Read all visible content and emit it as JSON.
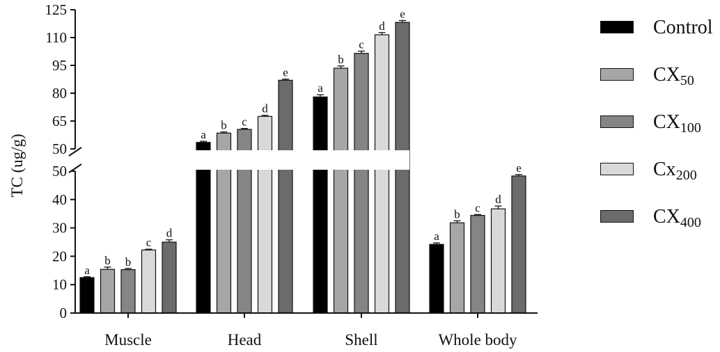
{
  "chart_data": {
    "type": "bar",
    "ylabel": "TC (ug/g)",
    "xlabel": "",
    "categories": [
      "Muscle",
      "Head",
      "Shell",
      "Whole body"
    ],
    "y_axis_break": {
      "lower_range": [
        0,
        50
      ],
      "upper_range": [
        50,
        125
      ],
      "lower_ticks": [
        "0",
        "10",
        "20",
        "30",
        "40",
        "50"
      ],
      "upper_ticks": [
        "50",
        "65",
        "80",
        "95",
        "110",
        "125"
      ]
    },
    "series": [
      {
        "name": "Control",
        "base": "Control",
        "sub": "",
        "color": "#000000",
        "values": [
          12.5,
          53.5,
          78,
          24.2
        ],
        "errors": [
          0.3,
          0.6,
          1.2,
          0.5
        ],
        "letters": [
          "a",
          "a",
          "a",
          "a"
        ]
      },
      {
        "name": "CX50",
        "base": "CX",
        "sub": "50",
        "color": "#a6a6a6",
        "values": [
          15.4,
          58.5,
          93.5,
          31.8
        ],
        "errors": [
          0.8,
          0.6,
          1.2,
          0.7
        ],
        "letters": [
          "b",
          "b",
          "b",
          "b"
        ]
      },
      {
        "name": "CX100",
        "base": "CX",
        "sub": "100",
        "color": "#858585",
        "values": [
          15.3,
          60.5,
          101.5,
          34.4
        ],
        "errors": [
          0.4,
          0.5,
          1.2,
          0.3
        ],
        "letters": [
          "b",
          "c",
          "c",
          "c"
        ]
      },
      {
        "name": "Cx200",
        "base": "Cx",
        "sub": "200",
        "color": "#d9d9d9",
        "values": [
          22.2,
          67.5,
          111.5,
          36.7
        ],
        "errors": [
          0.3,
          0.6,
          1.2,
          1.0
        ],
        "letters": [
          "c",
          "d",
          "d",
          "d"
        ]
      },
      {
        "name": "CX400",
        "base": "CX",
        "sub": "400",
        "color": "#6b6b6b",
        "values": [
          25.0,
          87.0,
          118.2,
          48.3
        ],
        "errors": [
          0.8,
          0.6,
          1.0,
          0.5
        ],
        "letters": [
          "d",
          "e",
          "e",
          "e"
        ]
      }
    ]
  }
}
